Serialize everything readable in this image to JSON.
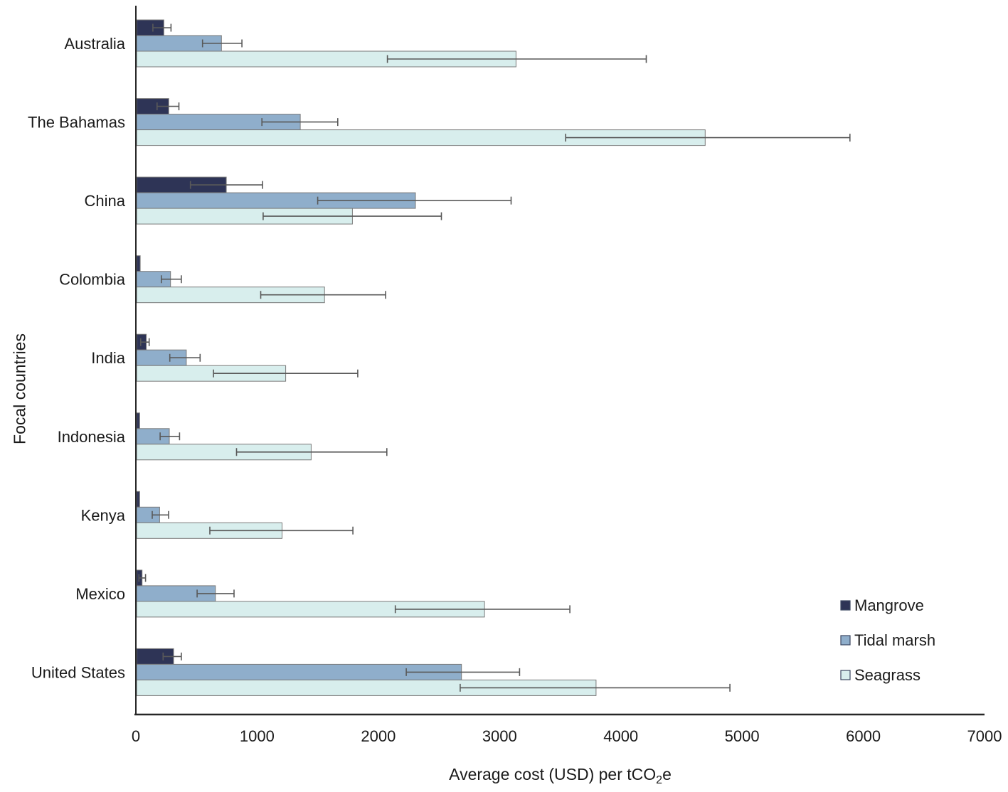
{
  "figure": {
    "background": "#ffffff"
  },
  "chart_data": {
    "type": "bar",
    "orientation": "horizontal",
    "title": "",
    "xlabel": {
      "prefix": "Average cost (USD) per tCO",
      "sub": "2",
      "suffix": "e"
    },
    "ylabel": "Focal countries",
    "xlim": [
      0,
      7000
    ],
    "xticks": [
      0,
      1000,
      2000,
      3000,
      4000,
      5000,
      6000,
      7000
    ],
    "grid": false,
    "legend_position": "inside-lower-right",
    "axis_color": "#262626",
    "text_color": "#1a1a1a",
    "bar_border_color": "#7a7a7a",
    "error_bar_color": "#595959",
    "legend_swatch_border": "#3c4861",
    "categories": [
      "Australia",
      "The Bahamas",
      "China",
      "Colombia",
      "India",
      "Indonesia",
      "Kenya",
      "Mexico",
      "United States"
    ],
    "series": [
      {
        "name": "Mangrove",
        "color": "#2e3456",
        "values": [
          225,
          265,
          740,
          30,
          80,
          25,
          25,
          45,
          305
        ],
        "error_ranges": [
          [
            140,
            290
          ],
          [
            175,
            355
          ],
          [
            450,
            1045
          ],
          null,
          [
            40,
            110
          ],
          null,
          null,
          [
            25,
            80
          ],
          [
            225,
            375
          ]
        ]
      },
      {
        "name": "Tidal marsh",
        "color": "#8faecb",
        "values": [
          700,
          1350,
          2300,
          280,
          410,
          270,
          190,
          650,
          2680
        ],
        "error_ranges": [
          [
            550,
            875
          ],
          [
            1040,
            1665
          ],
          [
            1500,
            3095
          ],
          [
            210,
            375
          ],
          [
            280,
            530
          ],
          [
            200,
            360
          ],
          [
            135,
            270
          ],
          [
            505,
            810
          ],
          [
            2230,
            3165
          ]
        ]
      },
      {
        "name": "Seagrass",
        "color": "#d8eeed",
        "values": [
          3130,
          4690,
          1780,
          1550,
          1230,
          1440,
          1200,
          2870,
          3790
        ],
        "error_ranges": [
          [
            2075,
            4210
          ],
          [
            3545,
            5890
          ],
          [
            1050,
            2520
          ],
          [
            1030,
            2060
          ],
          [
            640,
            1830
          ],
          [
            830,
            2070
          ],
          [
            610,
            1790
          ],
          [
            2140,
            3580
          ],
          [
            2675,
            4900
          ]
        ]
      }
    ]
  }
}
